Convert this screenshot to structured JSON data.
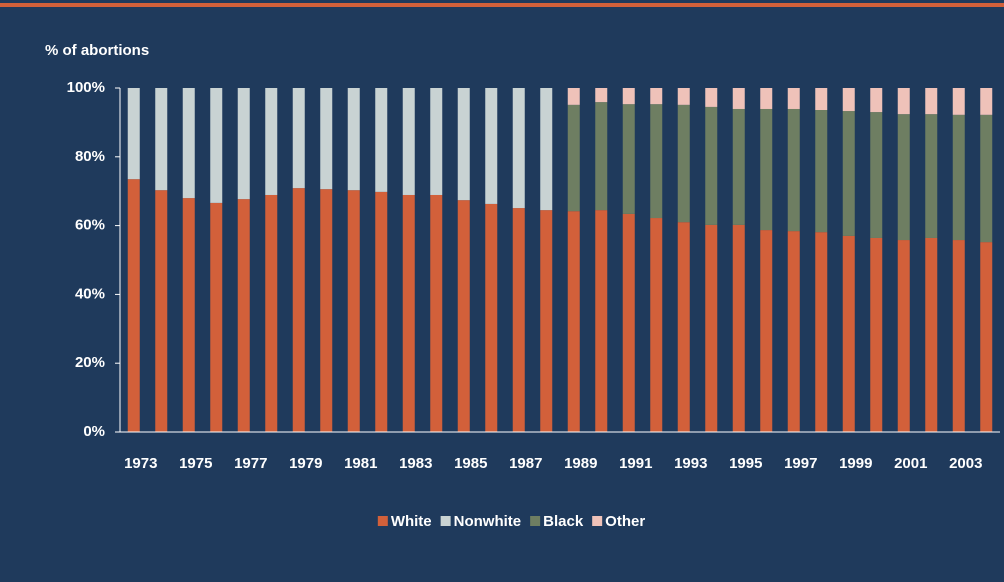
{
  "chart_data": {
    "type": "stacked_bar",
    "y_axis_label": "% of abortions",
    "categories": [
      "1973",
      null,
      "1975",
      null,
      "1977",
      null,
      "1979",
      null,
      "1981",
      null,
      "1983",
      null,
      "1985",
      null,
      "1987",
      null,
      "1989",
      null,
      "1991",
      null,
      "1993",
      null,
      "1995",
      null,
      "1997",
      null,
      "1999",
      null,
      "2001",
      null,
      "2003",
      null
    ],
    "series": [
      {
        "name": "White",
        "color": "#d2603a",
        "values": [
          73.5,
          70.3,
          68.0,
          66.6,
          67.7,
          68.9,
          70.9,
          70.6,
          70.3,
          69.8,
          68.9,
          68.9,
          67.4,
          66.3,
          65.1,
          64.5,
          64.2,
          64.5,
          63.4,
          62.2,
          61.0,
          60.2,
          60.2,
          58.7,
          58.4,
          58.1,
          57.0,
          56.4,
          55.8,
          56.4,
          55.8,
          55.2
        ]
      },
      {
        "name": "Nonwhite",
        "color": "#c9d3d3",
        "values": [
          26.5,
          29.7,
          32.0,
          33.4,
          32.3,
          31.1,
          29.1,
          29.4,
          29.7,
          30.2,
          31.1,
          31.1,
          32.6,
          33.7,
          34.9,
          35.5,
          null,
          null,
          null,
          null,
          null,
          null,
          null,
          null,
          null,
          null,
          null,
          null,
          null,
          null,
          null,
          null
        ]
      },
      {
        "name": "Black",
        "color": "#6e7e62",
        "values": [
          null,
          null,
          null,
          null,
          null,
          null,
          null,
          null,
          null,
          null,
          null,
          null,
          null,
          null,
          null,
          null,
          30.9,
          31.4,
          31.9,
          33.1,
          34.1,
          34.3,
          33.7,
          35.2,
          35.5,
          35.5,
          36.3,
          36.6,
          36.6,
          36.0,
          36.4,
          37.0
        ]
      },
      {
        "name": "Other",
        "color": "#efc2b9",
        "values": [
          null,
          null,
          null,
          null,
          null,
          null,
          null,
          null,
          null,
          null,
          null,
          null,
          null,
          null,
          null,
          null,
          4.9,
          4.1,
          4.7,
          4.7,
          4.9,
          5.5,
          6.1,
          6.1,
          6.1,
          6.4,
          6.7,
          7.0,
          7.6,
          7.6,
          7.8,
          7.8
        ]
      }
    ],
    "ylim": [
      0,
      100
    ],
    "yticks": [
      {
        "value": 0,
        "label": "0%"
      },
      {
        "value": 20,
        "label": "20%"
      },
      {
        "value": 40,
        "label": "40%"
      },
      {
        "value": 60,
        "label": "60%"
      },
      {
        "value": 80,
        "label": "80%"
      },
      {
        "value": 100,
        "label": "100%"
      }
    ],
    "legend": "bottom"
  }
}
